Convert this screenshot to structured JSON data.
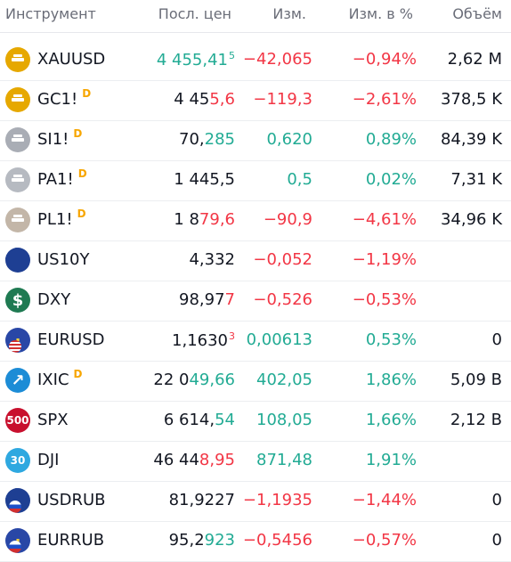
{
  "header": {
    "instrument": "Инструмент",
    "last": "Посл. цен",
    "change": "Изм.",
    "change_pct": "Изм. в %",
    "volume": "Объём"
  },
  "rows": [
    {
      "symbol": "XAUUSD",
      "d": "",
      "icon": "gold-bar-icon",
      "icon_color": "#e6a800",
      "last_main": "4 455,41",
      "last_tail": "5",
      "last_sup": true,
      "last_main_color": "pos",
      "last_tail_color": "pos",
      "change": "−42,065",
      "change_color": "neg",
      "change_pct": "−0,94%",
      "pct_color": "neg",
      "volume": "2,62 M"
    },
    {
      "symbol": "GC1!",
      "d": "D",
      "icon": "gold-bar-icon",
      "icon_color": "#e6a800",
      "last_main": "4 45",
      "last_tail": "5,6",
      "last_sup": false,
      "last_main_color": "neu",
      "last_tail_color": "neg",
      "change": "−119,3",
      "change_color": "neg",
      "change_pct": "−2,61%",
      "pct_color": "neg",
      "volume": "378,5 K"
    },
    {
      "symbol": "SI1!",
      "d": "D",
      "icon": "silver-bar-icon",
      "icon_color": "#a9adb5",
      "last_main": "70,",
      "last_tail": "285",
      "last_sup": false,
      "last_main_color": "neu",
      "last_tail_color": "pos",
      "change": "0,620",
      "change_color": "pos",
      "change_pct": "0,89%",
      "pct_color": "pos",
      "volume": "84,39 K"
    },
    {
      "symbol": "PA1!",
      "d": "D",
      "icon": "palladium-bar-icon",
      "icon_color": "#b6bac1",
      "last_main": "1 445,5",
      "last_tail": "",
      "last_sup": false,
      "last_main_color": "neu",
      "last_tail_color": "neu",
      "change": "0,5",
      "change_color": "pos",
      "change_pct": "0,02%",
      "pct_color": "pos",
      "volume": "7,31 K"
    },
    {
      "symbol": "PL1!",
      "d": "D",
      "icon": "platinum-bar-icon",
      "icon_color": "#c3b6a8",
      "last_main": "1 8",
      "last_tail": "79,6",
      "last_sup": false,
      "last_main_color": "neu",
      "last_tail_color": "neg",
      "change": "−90,9",
      "change_color": "neg",
      "change_pct": "−4,61%",
      "pct_color": "neg",
      "volume": "34,96 K"
    },
    {
      "symbol": "US10Y",
      "d": "",
      "icon": "us-flag-icon",
      "icon_color": "#1e3f93",
      "last_main": "4,332",
      "last_tail": "",
      "last_sup": false,
      "last_main_color": "neu",
      "last_tail_color": "neu",
      "change": "−0,052",
      "change_color": "neg",
      "change_pct": "−1,19%",
      "pct_color": "neg",
      "volume": ""
    },
    {
      "symbol": "DXY",
      "d": "",
      "icon": "dollar-icon",
      "icon_color": "#1f7a52",
      "last_main": "98,97",
      "last_tail": "7",
      "last_sup": false,
      "last_main_color": "neu",
      "last_tail_color": "neg",
      "change": "−0,526",
      "change_color": "neg",
      "change_pct": "−0,53%",
      "pct_color": "neg",
      "volume": ""
    },
    {
      "symbol": "EURUSD",
      "d": "",
      "icon": "eu-us-flags-icon",
      "icon_color": "#2947a6",
      "last_main": "1,1630",
      "last_tail": "3",
      "last_sup": true,
      "last_main_color": "neu",
      "last_tail_color": "neg",
      "change": "0,00613",
      "change_color": "pos",
      "change_pct": "0,53%",
      "pct_color": "pos",
      "volume": "0"
    },
    {
      "symbol": "IXIC",
      "d": "D",
      "icon": "nasdaq-icon",
      "icon_color": "#1c8cd6",
      "last_main": "22 0",
      "last_tail": "49,66",
      "last_sup": false,
      "last_main_color": "neu",
      "last_tail_color": "pos",
      "change": "402,05",
      "change_color": "pos",
      "change_pct": "1,86%",
      "pct_color": "pos",
      "volume": "5,09 B"
    },
    {
      "symbol": "SPX",
      "d": "",
      "icon": "sp500-icon",
      "icon_color": "#c8102e",
      "icon_text": "500",
      "last_main": "6 614,",
      "last_tail": "54",
      "last_sup": false,
      "last_main_color": "neu",
      "last_tail_color": "pos",
      "change": "108,05",
      "change_color": "pos",
      "change_pct": "1,66%",
      "pct_color": "pos",
      "volume": "2,12 B"
    },
    {
      "symbol": "DJI",
      "d": "",
      "icon": "dow30-icon",
      "icon_color": "#2ea8e0",
      "icon_text": "30",
      "last_main": "46 44",
      "last_tail": "8,95",
      "last_sup": false,
      "last_main_color": "neu",
      "last_tail_color": "neg",
      "change": "871,48",
      "change_color": "pos",
      "change_pct": "1,91%",
      "pct_color": "pos",
      "volume": ""
    },
    {
      "symbol": "USDRUB",
      "d": "",
      "icon": "us-ru-flags-icon",
      "icon_color": "#1e3f93",
      "last_main": "81,9227",
      "last_tail": "",
      "last_sup": false,
      "last_main_color": "neu",
      "last_tail_color": "neu",
      "change": "−1,1935",
      "change_color": "neg",
      "change_pct": "−1,44%",
      "pct_color": "neg",
      "volume": "0"
    },
    {
      "symbol": "EURRUB",
      "d": "",
      "icon": "eu-ru-flags-icon",
      "icon_color": "#2947a6",
      "last_main": "95,2",
      "last_tail": "923",
      "last_sup": false,
      "last_main_color": "neu",
      "last_tail_color": "pos",
      "change": "−0,5456",
      "change_color": "neg",
      "change_pct": "−0,57%",
      "pct_color": "neg",
      "volume": "0"
    }
  ]
}
